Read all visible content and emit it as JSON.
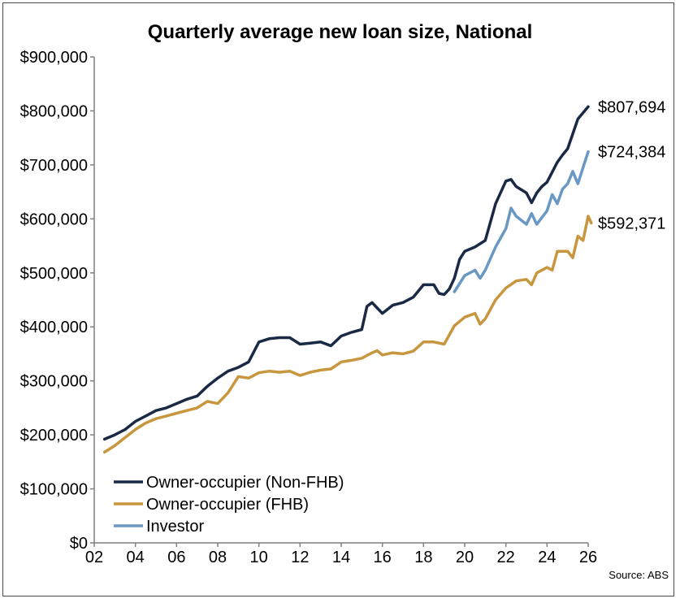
{
  "chart_data": {
    "type": "line",
    "title": "Quarterly average new loan size, National",
    "source": "Source: ABS",
    "xlabel": "",
    "ylabel": "",
    "xlim": [
      2,
      26
    ],
    "ylim": [
      0,
      900000
    ],
    "x_ticks": [
      "02",
      "04",
      "06",
      "08",
      "10",
      "12",
      "14",
      "16",
      "18",
      "20",
      "22",
      "24",
      "26"
    ],
    "y_ticks": [
      "$0",
      "$100,000",
      "$200,000",
      "$300,000",
      "$400,000",
      "$500,000",
      "$600,000",
      "$700,000",
      "$800,000",
      "$900,000"
    ],
    "grid": false,
    "legend_position": "bottom-left",
    "series": [
      {
        "name": "Owner-occupier (Non-FHB)",
        "color": "#1a2a44",
        "end_label": "$807,694",
        "points": [
          [
            2.5,
            192000
          ],
          [
            3.0,
            200000
          ],
          [
            3.5,
            210000
          ],
          [
            4.0,
            225000
          ],
          [
            4.5,
            235000
          ],
          [
            5.0,
            245000
          ],
          [
            5.5,
            250000
          ],
          [
            6.0,
            258000
          ],
          [
            6.5,
            266000
          ],
          [
            7.0,
            272000
          ],
          [
            7.5,
            290000
          ],
          [
            8.0,
            305000
          ],
          [
            8.5,
            318000
          ],
          [
            9.0,
            325000
          ],
          [
            9.5,
            335000
          ],
          [
            10.0,
            372000
          ],
          [
            10.5,
            378000
          ],
          [
            11.0,
            380000
          ],
          [
            11.5,
            380000
          ],
          [
            12.0,
            368000
          ],
          [
            12.5,
            370000
          ],
          [
            13.0,
            372000
          ],
          [
            13.5,
            365000
          ],
          [
            14.0,
            383000
          ],
          [
            14.5,
            390000
          ],
          [
            15.0,
            395000
          ],
          [
            15.25,
            438000
          ],
          [
            15.5,
            445000
          ],
          [
            15.75,
            435000
          ],
          [
            16.0,
            425000
          ],
          [
            16.5,
            440000
          ],
          [
            17.0,
            445000
          ],
          [
            17.5,
            455000
          ],
          [
            18.0,
            478000
          ],
          [
            18.5,
            478000
          ],
          [
            18.75,
            462000
          ],
          [
            19.0,
            460000
          ],
          [
            19.25,
            470000
          ],
          [
            19.5,
            490000
          ],
          [
            19.75,
            525000
          ],
          [
            20.0,
            540000
          ],
          [
            20.5,
            548000
          ],
          [
            21.0,
            560000
          ],
          [
            21.5,
            628000
          ],
          [
            22.0,
            670000
          ],
          [
            22.25,
            673000
          ],
          [
            22.5,
            660000
          ],
          [
            23.0,
            648000
          ],
          [
            23.25,
            630000
          ],
          [
            23.5,
            648000
          ],
          [
            23.75,
            660000
          ],
          [
            24.0,
            668000
          ],
          [
            24.5,
            705000
          ],
          [
            24.75,
            718000
          ],
          [
            25.0,
            730000
          ],
          [
            25.5,
            785000
          ],
          [
            26.0,
            807694
          ]
        ]
      },
      {
        "name": "Owner-occupier (FHB)",
        "color": "#c8963e",
        "end_label": "$592,371",
        "points": [
          [
            2.5,
            168000
          ],
          [
            3.0,
            180000
          ],
          [
            3.5,
            195000
          ],
          [
            4.0,
            210000
          ],
          [
            4.5,
            222000
          ],
          [
            5.0,
            230000
          ],
          [
            5.5,
            235000
          ],
          [
            6.0,
            240000
          ],
          [
            6.5,
            245000
          ],
          [
            7.0,
            250000
          ],
          [
            7.5,
            262000
          ],
          [
            8.0,
            258000
          ],
          [
            8.5,
            278000
          ],
          [
            9.0,
            308000
          ],
          [
            9.5,
            305000
          ],
          [
            10.0,
            315000
          ],
          [
            10.5,
            318000
          ],
          [
            11.0,
            316000
          ],
          [
            11.5,
            318000
          ],
          [
            12.0,
            310000
          ],
          [
            12.5,
            316000
          ],
          [
            13.0,
            320000
          ],
          [
            13.5,
            322000
          ],
          [
            14.0,
            335000
          ],
          [
            14.5,
            338000
          ],
          [
            15.0,
            342000
          ],
          [
            15.5,
            352000
          ],
          [
            15.75,
            356000
          ],
          [
            16.0,
            348000
          ],
          [
            16.5,
            352000
          ],
          [
            17.0,
            350000
          ],
          [
            17.5,
            355000
          ],
          [
            18.0,
            372000
          ],
          [
            18.5,
            372000
          ],
          [
            19.0,
            368000
          ],
          [
            19.5,
            402000
          ],
          [
            20.0,
            418000
          ],
          [
            20.5,
            425000
          ],
          [
            20.75,
            405000
          ],
          [
            21.0,
            415000
          ],
          [
            21.5,
            450000
          ],
          [
            22.0,
            472000
          ],
          [
            22.5,
            485000
          ],
          [
            23.0,
            488000
          ],
          [
            23.25,
            478000
          ],
          [
            23.5,
            500000
          ],
          [
            24.0,
            510000
          ],
          [
            24.25,
            505000
          ],
          [
            24.5,
            540000
          ],
          [
            25.0,
            540000
          ],
          [
            25.25,
            528000
          ],
          [
            25.5,
            568000
          ],
          [
            25.75,
            560000
          ],
          [
            26.0,
            605000
          ],
          [
            26.15,
            592371
          ]
        ]
      },
      {
        "name": "Investor",
        "color": "#6a98c4",
        "end_label": "$724,384",
        "points": [
          [
            19.5,
            465000
          ],
          [
            20.0,
            495000
          ],
          [
            20.5,
            505000
          ],
          [
            20.75,
            490000
          ],
          [
            21.0,
            505000
          ],
          [
            21.5,
            548000
          ],
          [
            22.0,
            582000
          ],
          [
            22.25,
            620000
          ],
          [
            22.5,
            605000
          ],
          [
            23.0,
            590000
          ],
          [
            23.25,
            610000
          ],
          [
            23.5,
            590000
          ],
          [
            24.0,
            615000
          ],
          [
            24.25,
            645000
          ],
          [
            24.5,
            628000
          ],
          [
            24.75,
            655000
          ],
          [
            25.0,
            665000
          ],
          [
            25.25,
            688000
          ],
          [
            25.5,
            665000
          ],
          [
            25.75,
            695000
          ],
          [
            26.0,
            724384
          ]
        ]
      }
    ]
  }
}
